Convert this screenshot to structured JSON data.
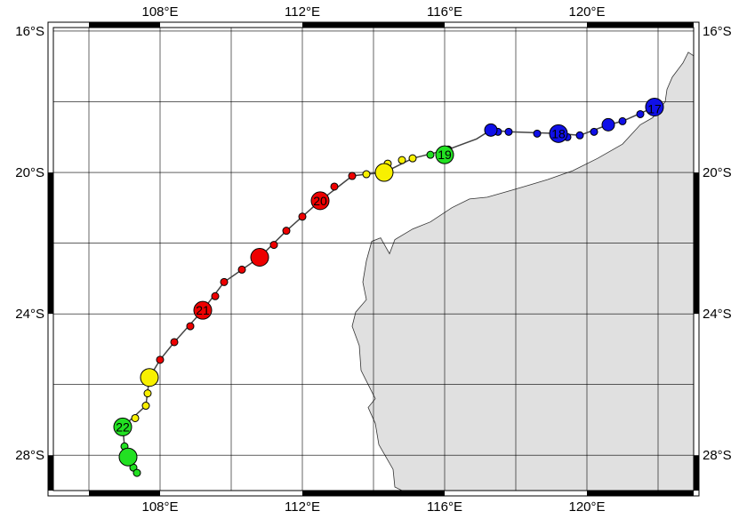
{
  "map": {
    "lon_labels": [
      "108°E",
      "112°E",
      "116°E",
      "120°E"
    ],
    "lat_labels": [
      "16°S",
      "20°S",
      "24°S",
      "28°S"
    ],
    "lon_values": [
      108,
      112,
      116,
      120
    ],
    "lat_values": [
      -16,
      -20,
      -24,
      -28
    ],
    "grid_lon": [
      106,
      108,
      110,
      112,
      114,
      116,
      118,
      120,
      122
    ],
    "grid_lat": [
      -16,
      -18,
      -20,
      -22,
      -24,
      -26,
      -28
    ],
    "extent": {
      "lon_min": 105.0,
      "lon_max": 123.0,
      "lat_min": -29.0,
      "lat_max": -15.9
    },
    "colors": {
      "land": "#e0e0e0",
      "coast": "#333333",
      "grid": "#000000",
      "track_line": "#444444",
      "blue": "#1010e8",
      "green": "#22e022",
      "yellow": "#f8f000",
      "red": "#ee0000"
    }
  },
  "track": {
    "day_labels": [
      {
        "text": "17",
        "lon": 121.9,
        "lat": -18.2,
        "color": "blue"
      },
      {
        "text": "18",
        "lon": 119.2,
        "lat": -18.9,
        "color": "blue"
      },
      {
        "text": "19",
        "lon": 116.0,
        "lat": -19.5,
        "color": "green"
      },
      {
        "text": "20",
        "lon": 112.5,
        "lat": -20.8,
        "color": "red"
      },
      {
        "text": "21",
        "lon": 109.2,
        "lat": -23.9,
        "color": "red"
      },
      {
        "text": "22",
        "lon": 106.95,
        "lat": -27.2,
        "color": "green"
      }
    ],
    "points": [
      {
        "lon": 121.9,
        "lat": -18.15,
        "color": "blue",
        "size": "large"
      },
      {
        "lon": 121.5,
        "lat": -18.35,
        "color": "blue",
        "size": "small"
      },
      {
        "lon": 121.0,
        "lat": -18.55,
        "color": "blue",
        "size": "small"
      },
      {
        "lon": 120.6,
        "lat": -18.65,
        "color": "blue",
        "size": "medium"
      },
      {
        "lon": 120.2,
        "lat": -18.85,
        "color": "blue",
        "size": "small"
      },
      {
        "lon": 119.8,
        "lat": -18.95,
        "color": "blue",
        "size": "small"
      },
      {
        "lon": 119.45,
        "lat": -19.0,
        "color": "blue",
        "size": "small"
      },
      {
        "lon": 119.2,
        "lat": -18.9,
        "color": "blue",
        "size": "large"
      },
      {
        "lon": 118.6,
        "lat": -18.9,
        "color": "blue",
        "size": "small"
      },
      {
        "lon": 117.8,
        "lat": -18.85,
        "color": "blue",
        "size": "small"
      },
      {
        "lon": 117.5,
        "lat": -18.85,
        "color": "blue",
        "size": "small"
      },
      {
        "lon": 117.3,
        "lat": -18.8,
        "color": "blue",
        "size": "medium"
      },
      {
        "lon": 116.1,
        "lat": -19.35,
        "color": "green",
        "size": "small"
      },
      {
        "lon": 115.6,
        "lat": -19.5,
        "color": "green",
        "size": "small"
      },
      {
        "lon": 116.0,
        "lat": -19.5,
        "color": "green",
        "size": "large"
      },
      {
        "lon": 115.1,
        "lat": -19.6,
        "color": "yellow",
        "size": "small"
      },
      {
        "lon": 114.8,
        "lat": -19.65,
        "color": "yellow",
        "size": "small"
      },
      {
        "lon": 114.4,
        "lat": -19.75,
        "color": "yellow",
        "size": "small"
      },
      {
        "lon": 113.8,
        "lat": -20.05,
        "color": "yellow",
        "size": "small"
      },
      {
        "lon": 114.3,
        "lat": -20.0,
        "color": "yellow",
        "size": "large"
      },
      {
        "lon": 113.4,
        "lat": -20.1,
        "color": "red",
        "size": "small"
      },
      {
        "lon": 112.9,
        "lat": -20.4,
        "color": "red",
        "size": "small"
      },
      {
        "lon": 112.5,
        "lat": -20.8,
        "color": "red",
        "size": "large"
      },
      {
        "lon": 112.0,
        "lat": -21.25,
        "color": "red",
        "size": "small"
      },
      {
        "lon": 111.55,
        "lat": -21.65,
        "color": "red",
        "size": "small"
      },
      {
        "lon": 111.2,
        "lat": -22.05,
        "color": "red",
        "size": "small"
      },
      {
        "lon": 110.8,
        "lat": -22.4,
        "color": "red",
        "size": "large"
      },
      {
        "lon": 110.3,
        "lat": -22.75,
        "color": "red",
        "size": "small"
      },
      {
        "lon": 109.8,
        "lat": -23.1,
        "color": "red",
        "size": "small"
      },
      {
        "lon": 109.55,
        "lat": -23.5,
        "color": "red",
        "size": "small"
      },
      {
        "lon": 109.2,
        "lat": -23.9,
        "color": "red",
        "size": "large"
      },
      {
        "lon": 108.85,
        "lat": -24.35,
        "color": "red",
        "size": "small"
      },
      {
        "lon": 108.4,
        "lat": -24.8,
        "color": "red",
        "size": "small"
      },
      {
        "lon": 108.0,
        "lat": -25.3,
        "color": "red",
        "size": "small"
      },
      {
        "lon": 107.7,
        "lat": -25.8,
        "color": "yellow",
        "size": "large"
      },
      {
        "lon": 107.65,
        "lat": -26.25,
        "color": "yellow",
        "size": "small"
      },
      {
        "lon": 107.6,
        "lat": -26.6,
        "color": "yellow",
        "size": "small"
      },
      {
        "lon": 107.3,
        "lat": -26.95,
        "color": "yellow",
        "size": "small"
      },
      {
        "lon": 106.95,
        "lat": -27.2,
        "color": "green",
        "size": "large"
      },
      {
        "lon": 107.0,
        "lat": -27.75,
        "color": "green",
        "size": "small"
      },
      {
        "lon": 107.1,
        "lat": -28.05,
        "color": "green",
        "size": "large"
      },
      {
        "lon": 107.25,
        "lat": -28.35,
        "color": "green",
        "size": "small"
      },
      {
        "lon": 107.35,
        "lat": -28.5,
        "color": "green",
        "size": "small"
      }
    ],
    "line": [
      [
        121.9,
        -18.15
      ],
      [
        121.0,
        -18.55
      ],
      [
        120.6,
        -18.65
      ],
      [
        119.8,
        -18.95
      ],
      [
        119.2,
        -18.9
      ],
      [
        117.8,
        -18.85
      ],
      [
        117.3,
        -18.8
      ],
      [
        116.9,
        -19.05
      ],
      [
        116.1,
        -19.35
      ],
      [
        115.1,
        -19.6
      ],
      [
        114.3,
        -20.0
      ],
      [
        113.8,
        -20.05
      ],
      [
        113.4,
        -20.1
      ],
      [
        112.5,
        -20.8
      ],
      [
        111.55,
        -21.65
      ],
      [
        110.8,
        -22.4
      ],
      [
        109.8,
        -23.1
      ],
      [
        109.2,
        -23.9
      ],
      [
        108.4,
        -24.8
      ],
      [
        108.0,
        -25.3
      ],
      [
        107.7,
        -25.8
      ],
      [
        107.6,
        -26.6
      ],
      [
        106.95,
        -27.2
      ],
      [
        107.0,
        -27.75
      ],
      [
        107.1,
        -28.05
      ],
      [
        107.35,
        -28.5
      ]
    ]
  },
  "coastline": [
    [
      123.0,
      -16.7
    ],
    [
      122.85,
      -16.6
    ],
    [
      122.7,
      -16.9
    ],
    [
      122.4,
      -17.3
    ],
    [
      122.25,
      -17.65
    ],
    [
      122.2,
      -18.0
    ],
    [
      121.85,
      -18.45
    ],
    [
      121.5,
      -18.65
    ],
    [
      121.0,
      -19.2
    ],
    [
      120.3,
      -19.6
    ],
    [
      119.6,
      -19.95
    ],
    [
      118.9,
      -20.2
    ],
    [
      118.4,
      -20.35
    ],
    [
      117.9,
      -20.5
    ],
    [
      117.2,
      -20.7
    ],
    [
      116.7,
      -20.75
    ],
    [
      116.2,
      -21.0
    ],
    [
      115.6,
      -21.4
    ],
    [
      115.1,
      -21.6
    ],
    [
      114.6,
      -21.9
    ],
    [
      114.45,
      -22.3
    ],
    [
      114.2,
      -21.85
    ],
    [
      113.95,
      -21.95
    ],
    [
      113.8,
      -22.5
    ],
    [
      113.7,
      -23.1
    ],
    [
      113.8,
      -23.6
    ],
    [
      113.5,
      -23.95
    ],
    [
      113.4,
      -24.35
    ],
    [
      113.6,
      -24.9
    ],
    [
      113.65,
      -25.6
    ],
    [
      113.9,
      -26.1
    ],
    [
      114.05,
      -26.4
    ],
    [
      113.85,
      -26.65
    ],
    [
      114.05,
      -27.1
    ],
    [
      114.15,
      -27.7
    ],
    [
      114.55,
      -28.4
    ],
    [
      114.6,
      -28.9
    ],
    [
      114.8,
      -29.0
    ],
    [
      123.0,
      -29.0
    ]
  ]
}
